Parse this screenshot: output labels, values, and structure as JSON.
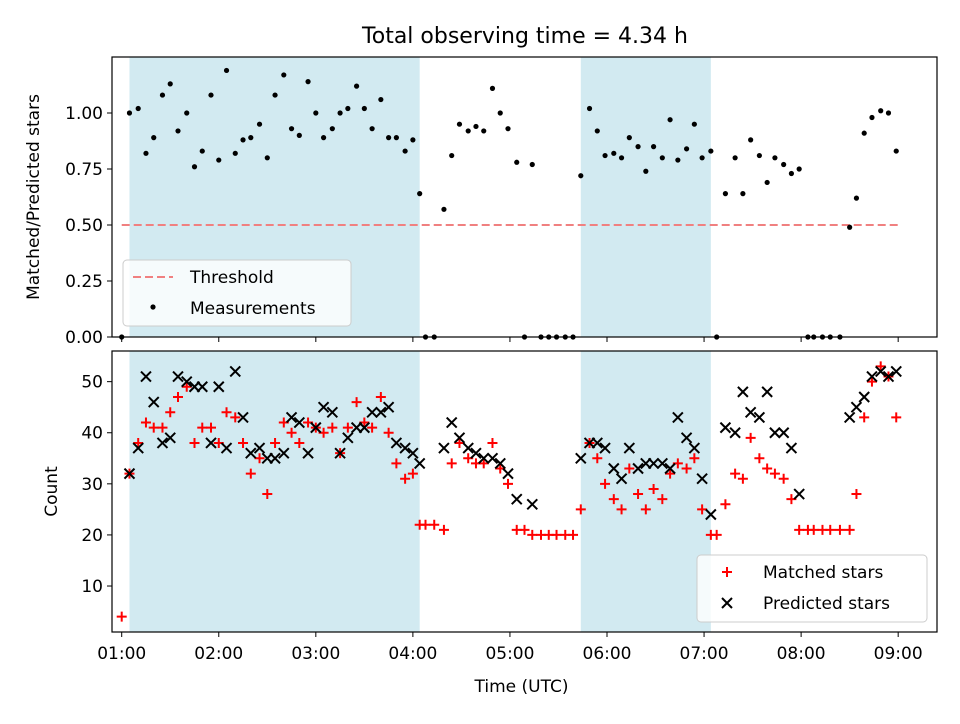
{
  "figure": {
    "title": "Total observing time = 4.34 h"
  },
  "chart_data": [
    {
      "type": "scatter",
      "xlabel": "",
      "ylabel": "Matched/Predicted stars",
      "xlim": [
        0.9,
        9.4
      ],
      "ylim": [
        0.0,
        1.25
      ],
      "xticks": [
        1,
        2,
        3,
        4,
        5,
        6,
        7,
        8,
        9
      ],
      "yticks": [
        0.0,
        0.25,
        0.5,
        0.75,
        1.0
      ],
      "ytick_labels": [
        "0.00",
        "0.25",
        "0.50",
        "0.75",
        "1.00"
      ],
      "bands": [
        [
          1.08,
          4.07
        ],
        [
          5.73,
          7.07
        ]
      ],
      "band_color": "#add8e6",
      "threshold": {
        "name": "Threshold",
        "value": 0.5,
        "x_range": [
          1.0,
          9.0
        ],
        "color": "#f08080"
      },
      "series": [
        {
          "name": "Measurements",
          "color": "#000000",
          "x": [
            1.0,
            1.08,
            1.17,
            1.25,
            1.33,
            1.42,
            1.5,
            1.58,
            1.67,
            1.75,
            1.83,
            1.92,
            2.0,
            2.08,
            2.17,
            2.25,
            2.33,
            2.42,
            2.5,
            2.58,
            2.67,
            2.75,
            2.83,
            2.92,
            3.0,
            3.08,
            3.17,
            3.25,
            3.33,
            3.42,
            3.5,
            3.58,
            3.67,
            3.75,
            3.83,
            3.92,
            4.0,
            4.07,
            4.13,
            4.22,
            4.32,
            4.4,
            4.48,
            4.57,
            4.65,
            4.73,
            4.82,
            4.9,
            4.98,
            5.07,
            5.15,
            5.23,
            5.32,
            5.4,
            5.48,
            5.57,
            5.65,
            5.73,
            5.82,
            5.9,
            5.98,
            6.07,
            6.15,
            6.23,
            6.32,
            6.4,
            6.48,
            6.57,
            6.65,
            6.73,
            6.82,
            6.9,
            6.98,
            7.07,
            7.13,
            7.22,
            7.32,
            7.4,
            7.48,
            7.57,
            7.65,
            7.73,
            7.82,
            7.9,
            7.98,
            8.07,
            8.13,
            8.22,
            8.3,
            8.4,
            8.5,
            8.57,
            8.65,
            8.73,
            8.82,
            8.9,
            8.98
          ],
          "values": [
            0.0,
            1.0,
            1.02,
            0.82,
            0.89,
            1.08,
            1.13,
            0.92,
            1.0,
            0.76,
            0.83,
            1.08,
            0.79,
            1.19,
            0.82,
            0.88,
            0.89,
            0.95,
            0.8,
            1.08,
            1.17,
            0.93,
            0.9,
            1.14,
            1.0,
            0.89,
            0.93,
            1.0,
            1.02,
            1.12,
            1.02,
            0.93,
            1.06,
            0.89,
            0.89,
            0.83,
            0.88,
            0.64,
            0.0,
            0.0,
            0.57,
            0.81,
            0.95,
            0.92,
            0.94,
            0.92,
            1.11,
            1.0,
            0.93,
            0.78,
            0.0,
            0.77,
            0.0,
            0.0,
            0.0,
            0.0,
            0.0,
            0.72,
            1.02,
            0.92,
            0.81,
            0.82,
            0.8,
            0.89,
            0.85,
            0.74,
            0.85,
            0.8,
            0.97,
            0.79,
            0.84,
            0.95,
            0.8,
            0.83,
            0.0,
            0.64,
            0.8,
            0.64,
            0.88,
            0.81,
            0.69,
            0.8,
            0.77,
            0.73,
            0.75,
            0.0,
            0.0,
            0.0,
            0.0,
            0.0,
            0.49,
            0.62,
            0.91,
            0.98,
            1.01,
            1.0,
            0.83
          ]
        }
      ]
    },
    {
      "type": "scatter",
      "xlabel": "Time (UTC)",
      "ylabel": "Count",
      "xlim": [
        0.9,
        9.4
      ],
      "ylim": [
        1,
        56
      ],
      "xticks": [
        1,
        2,
        3,
        4,
        5,
        6,
        7,
        8,
        9
      ],
      "xtick_labels": [
        "01:00",
        "02:00",
        "03:00",
        "04:00",
        "05:00",
        "06:00",
        "07:00",
        "08:00",
        "09:00"
      ],
      "yticks": [
        10,
        20,
        30,
        40,
        50
      ],
      "ytick_labels": [
        "10",
        "20",
        "30",
        "40",
        "50"
      ],
      "bands": [
        [
          1.08,
          4.07
        ],
        [
          5.73,
          7.07
        ]
      ],
      "band_color": "#add8e6",
      "series": [
        {
          "name": "Matched stars",
          "color": "#ff0000",
          "marker": "plus",
          "x": [
            1.0,
            1.08,
            1.17,
            1.25,
            1.33,
            1.42,
            1.5,
            1.58,
            1.67,
            1.75,
            1.83,
            1.92,
            2.0,
            2.08,
            2.17,
            2.25,
            2.33,
            2.42,
            2.5,
            2.58,
            2.67,
            2.75,
            2.83,
            2.92,
            3.0,
            3.08,
            3.17,
            3.25,
            3.33,
            3.42,
            3.5,
            3.58,
            3.67,
            3.75,
            3.83,
            3.92,
            4.0,
            4.07,
            4.13,
            4.22,
            4.32,
            4.4,
            4.48,
            4.57,
            4.65,
            4.73,
            4.82,
            4.9,
            4.98,
            5.07,
            5.15,
            5.23,
            5.32,
            5.4,
            5.48,
            5.57,
            5.65,
            5.73,
            5.82,
            5.9,
            5.98,
            6.07,
            6.15,
            6.23,
            6.32,
            6.4,
            6.48,
            6.57,
            6.65,
            6.73,
            6.82,
            6.9,
            6.98,
            7.07,
            7.13,
            7.22,
            7.32,
            7.4,
            7.48,
            7.57,
            7.65,
            7.73,
            7.82,
            7.9,
            7.98,
            8.07,
            8.13,
            8.22,
            8.3,
            8.4,
            8.5,
            8.57,
            8.65,
            8.73,
            8.82,
            8.9,
            8.98
          ],
          "values": [
            4,
            32,
            38,
            42,
            41,
            41,
            44,
            47,
            49,
            38,
            41,
            41,
            38,
            44,
            43,
            38,
            32,
            35,
            28,
            38,
            42,
            40,
            38,
            42,
            41,
            40,
            41,
            36,
            41,
            46,
            42,
            41,
            47,
            40,
            34,
            31,
            32,
            22,
            22,
            22,
            21,
            34,
            38,
            35,
            34,
            34,
            38,
            33,
            30,
            21,
            21,
            20,
            20,
            20,
            20,
            20,
            20,
            25,
            38,
            35,
            30,
            27,
            25,
            33,
            28,
            25,
            29,
            27,
            32,
            34,
            33,
            35,
            25,
            20,
            20,
            26,
            32,
            31,
            39,
            35,
            33,
            32,
            31,
            27,
            21,
            21,
            21,
            21,
            21,
            21,
            21,
            28,
            43,
            50,
            53,
            51,
            43
          ]
        },
        {
          "name": "Predicted stars",
          "color": "#000000",
          "marker": "x",
          "x": [
            1.08,
            1.17,
            1.25,
            1.33,
            1.42,
            1.5,
            1.58,
            1.67,
            1.75,
            1.83,
            1.92,
            2.0,
            2.08,
            2.17,
            2.25,
            2.33,
            2.42,
            2.5,
            2.58,
            2.67,
            2.75,
            2.83,
            2.92,
            3.0,
            3.08,
            3.17,
            3.25,
            3.33,
            3.42,
            3.5,
            3.58,
            3.67,
            3.75,
            3.83,
            3.92,
            4.0,
            4.07,
            4.32,
            4.4,
            4.48,
            4.57,
            4.65,
            4.73,
            4.82,
            4.9,
            4.98,
            5.07,
            5.23,
            5.73,
            5.82,
            5.9,
            5.98,
            6.07,
            6.15,
            6.23,
            6.32,
            6.4,
            6.48,
            6.57,
            6.65,
            6.73,
            6.82,
            6.9,
            6.98,
            7.07,
            7.22,
            7.32,
            7.4,
            7.48,
            7.57,
            7.65,
            7.73,
            7.82,
            7.9,
            7.98,
            8.5,
            8.57,
            8.65,
            8.73,
            8.82,
            8.9,
            8.98
          ],
          "values": [
            32,
            37,
            51,
            46,
            38,
            39,
            51,
            50,
            49,
            49,
            38,
            49,
            37,
            52,
            43,
            36,
            37,
            35,
            35,
            36,
            43,
            42,
            36,
            41,
            45,
            44,
            36,
            39,
            41,
            41,
            44,
            44,
            45,
            38,
            37,
            36,
            34,
            37,
            42,
            39,
            37,
            36,
            35,
            35,
            34,
            32,
            27,
            26,
            35,
            38,
            38,
            37,
            33,
            31,
            37,
            33,
            34,
            34,
            34,
            33,
            43,
            39,
            37,
            31,
            24,
            41,
            40,
            48,
            44,
            43,
            48,
            40,
            40,
            37,
            28,
            43,
            45,
            47,
            51,
            52,
            51,
            52
          ]
        }
      ]
    }
  ]
}
